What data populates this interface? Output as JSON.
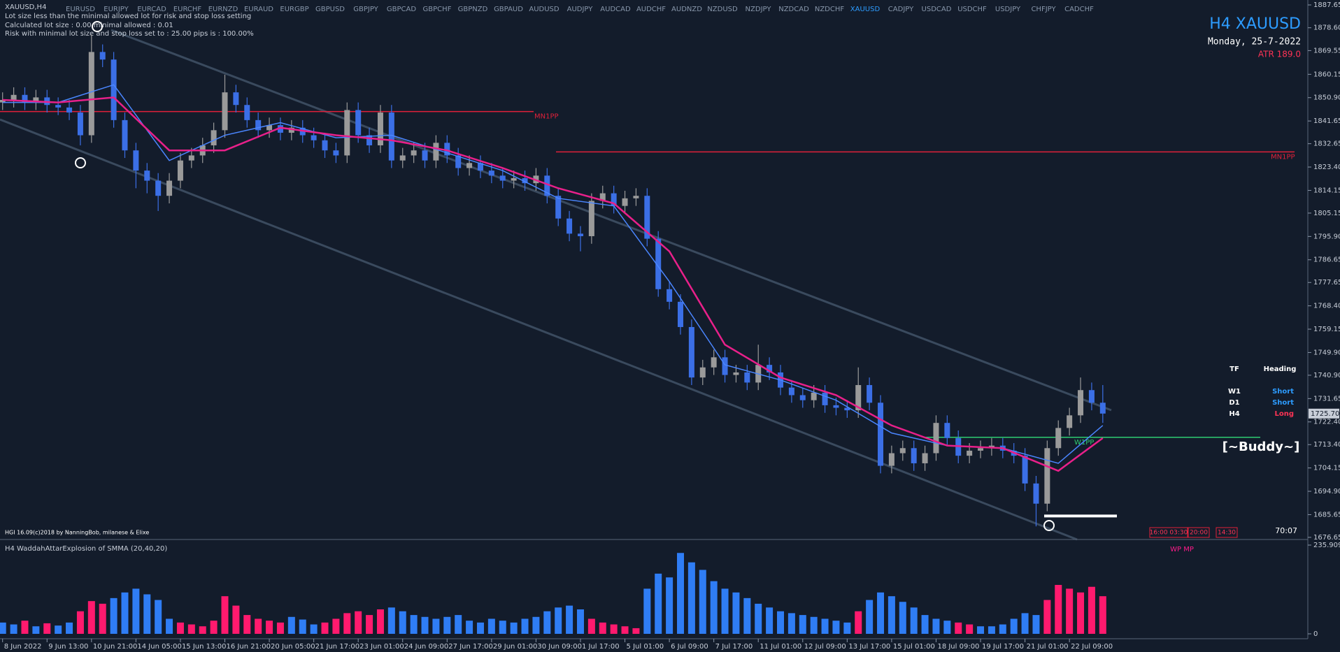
{
  "window": {
    "title": "XAUUSD,H4",
    "symbols": [
      "EURUSD",
      "EURJPY",
      "EURCAD",
      "EURCHF",
      "EURNZD",
      "EURAUD",
      "EURGBP",
      "GBPUSD",
      "GBPJPY",
      "GBPCAD",
      "GBPCHF",
      "GBPNZD",
      "GBPAUD",
      "AUDUSD",
      "AUDJPY",
      "AUDCAD",
      "AUDCHF",
      "AUDNZD",
      "NZDUSD",
      "NZDJPY",
      "NZDCAD",
      "NZDCHF",
      "XAUUSD",
      "CADJPY",
      "USDCAD",
      "USDCHF",
      "USDJPY",
      "CHFJPY",
      "CADCHF"
    ],
    "active_symbol": "XAUUSD"
  },
  "messages": [
    "Lot size less than the minimal allowed lot for risk and stop loss setting",
    "Calculated lot size : 0.00 minimal allowed : 0.01",
    "Risk with minimal lot size and stop loss set to : 25.00 pips is : 100.00%"
  ],
  "header": {
    "title": "H4 XAUUSD",
    "date": "Monday, 25-7-2022",
    "atr": "ATR 189.0"
  },
  "chart_data": {
    "type": "candlestick",
    "up_color": "#9a9a9a",
    "down_color": "#3b6fe6",
    "candles": [
      [
        1849,
        1853,
        1846,
        1850
      ],
      [
        1850,
        1855,
        1847,
        1852
      ],
      [
        1852,
        1855,
        1846,
        1849
      ],
      [
        1849,
        1854,
        1846,
        1851
      ],
      [
        1851,
        1854,
        1845,
        1848
      ],
      [
        1848,
        1851,
        1844,
        1847
      ],
      [
        1847,
        1850,
        1842,
        1845
      ],
      [
        1845,
        1848,
        1832,
        1836
      ],
      [
        1836,
        1876,
        1833,
        1869
      ],
      [
        1869,
        1872,
        1863,
        1866
      ],
      [
        1866,
        1869,
        1839,
        1842
      ],
      [
        1842,
        1845,
        1827,
        1830
      ],
      [
        1830,
        1833,
        1815,
        1822
      ],
      [
        1822,
        1825,
        1813,
        1818
      ],
      [
        1818,
        1821,
        1806,
        1812
      ],
      [
        1812,
        1821,
        1809,
        1818
      ],
      [
        1818,
        1829,
        1815,
        1826
      ],
      [
        1826,
        1831,
        1823,
        1828
      ],
      [
        1828,
        1835,
        1825,
        1832
      ],
      [
        1832,
        1841,
        1829,
        1838
      ],
      [
        1838,
        1860,
        1835,
        1853
      ],
      [
        1853,
        1856,
        1845,
        1848
      ],
      [
        1848,
        1851,
        1839,
        1842
      ],
      [
        1842,
        1845,
        1835,
        1838
      ],
      [
        1838,
        1843,
        1835,
        1840
      ],
      [
        1840,
        1843,
        1834,
        1837
      ],
      [
        1837,
        1842,
        1834,
        1839
      ],
      [
        1839,
        1842,
        1833,
        1836
      ],
      [
        1836,
        1839,
        1831,
        1834
      ],
      [
        1834,
        1837,
        1827,
        1830
      ],
      [
        1830,
        1833,
        1825,
        1828
      ],
      [
        1828,
        1849,
        1825,
        1846
      ],
      [
        1846,
        1849,
        1833,
        1836
      ],
      [
        1836,
        1839,
        1829,
        1832
      ],
      [
        1832,
        1848,
        1829,
        1845
      ],
      [
        1845,
        1848,
        1823,
        1826
      ],
      [
        1826,
        1831,
        1823,
        1828
      ],
      [
        1828,
        1833,
        1825,
        1830
      ],
      [
        1830,
        1833,
        1823,
        1826
      ],
      [
        1826,
        1836,
        1823,
        1833
      ],
      [
        1833,
        1836,
        1825,
        1828
      ],
      [
        1828,
        1831,
        1820,
        1823
      ],
      [
        1823,
        1828,
        1820,
        1825
      ],
      [
        1825,
        1828,
        1819,
        1822
      ],
      [
        1822,
        1825,
        1817,
        1820
      ],
      [
        1820,
        1823,
        1815,
        1818
      ],
      [
        1818,
        1822,
        1815,
        1819
      ],
      [
        1819,
        1822,
        1814,
        1817
      ],
      [
        1817,
        1823,
        1814,
        1820
      ],
      [
        1820,
        1823,
        1809,
        1812
      ],
      [
        1812,
        1815,
        1800,
        1803
      ],
      [
        1803,
        1806,
        1794,
        1797
      ],
      [
        1797,
        1800,
        1790,
        1796
      ],
      [
        1796,
        1813,
        1793,
        1810
      ],
      [
        1810,
        1816,
        1807,
        1813
      ],
      [
        1813,
        1816,
        1805,
        1808
      ],
      [
        1808,
        1814,
        1805,
        1811
      ],
      [
        1811,
        1815,
        1808,
        1812
      ],
      [
        1812,
        1815,
        1792,
        1795
      ],
      [
        1795,
        1798,
        1772,
        1775
      ],
      [
        1775,
        1778,
        1767,
        1770
      ],
      [
        1770,
        1773,
        1757,
        1760
      ],
      [
        1760,
        1763,
        1737,
        1740
      ],
      [
        1740,
        1747,
        1737,
        1744
      ],
      [
        1744,
        1751,
        1741,
        1748
      ],
      [
        1748,
        1751,
        1738,
        1741
      ],
      [
        1741,
        1745,
        1738,
        1742
      ],
      [
        1742,
        1745,
        1735,
        1738
      ],
      [
        1738,
        1753,
        1735,
        1745
      ],
      [
        1745,
        1748,
        1739,
        1742
      ],
      [
        1742,
        1745,
        1733,
        1736
      ],
      [
        1736,
        1739,
        1730,
        1733
      ],
      [
        1733,
        1736,
        1728,
        1731
      ],
      [
        1731,
        1737,
        1728,
        1734
      ],
      [
        1734,
        1737,
        1726,
        1729
      ],
      [
        1729,
        1732,
        1725,
        1728
      ],
      [
        1728,
        1731,
        1724,
        1727
      ],
      [
        1727,
        1744,
        1724,
        1737
      ],
      [
        1737,
        1740,
        1727,
        1730
      ],
      [
        1730,
        1733,
        1702,
        1705
      ],
      [
        1705,
        1713,
        1702,
        1710
      ],
      [
        1710,
        1715,
        1707,
        1712
      ],
      [
        1712,
        1715,
        1703,
        1706
      ],
      [
        1706,
        1713,
        1703,
        1710
      ],
      [
        1710,
        1725,
        1707,
        1722
      ],
      [
        1722,
        1725,
        1713,
        1716
      ],
      [
        1716,
        1719,
        1706,
        1709
      ],
      [
        1709,
        1714,
        1706,
        1711
      ],
      [
        1711,
        1715,
        1708,
        1712
      ],
      [
        1712,
        1716,
        1709,
        1713
      ],
      [
        1713,
        1716,
        1708,
        1711
      ],
      [
        1711,
        1714,
        1706,
        1709
      ],
      [
        1709,
        1712,
        1695,
        1698
      ],
      [
        1698,
        1701,
        1681,
        1690
      ],
      [
        1690,
        1715,
        1687,
        1712
      ],
      [
        1712,
        1723,
        1709,
        1720
      ],
      [
        1720,
        1728,
        1717,
        1725
      ],
      [
        1725,
        1740,
        1722,
        1735
      ],
      [
        1735,
        1738,
        1727,
        1730
      ],
      [
        1730,
        1737,
        1722,
        1725.7
      ]
    ],
    "time_labels": [
      "8 Jun 2022",
      "9 Jun 13:00",
      "10 Jun 21:00",
      "14 Jun 05:00",
      "15 Jun 13:00",
      "16 Jun 21:00",
      "20 Jun 05:00",
      "21 Jun 17:00",
      "23 Jun 01:00",
      "24 Jun 09:00",
      "27 Jun 17:00",
      "29 Jun 01:00",
      "30 Jun 09:00",
      "1 Jul 17:00",
      "5 Jul 01:00",
      "6 Jul 09:00",
      "7 Jul 17:00",
      "11 Jul 01:00",
      "12 Jul 09:00",
      "13 Jul 17:00",
      "15 Jul 01:00",
      "18 Jul 09:00",
      "19 Jul 17:00",
      "21 Jul 01:00",
      "22 Jul 09:00"
    ],
    "ylim": [
      1675.8,
      1889.6
    ],
    "yticks": [
      {
        "value": 1887.65,
        "label": "1887.65"
      },
      {
        "value": 1878.6,
        "label": "1878.60"
      },
      {
        "value": 1869.55,
        "label": "1869.55"
      },
      {
        "value": 1860.15,
        "label": "1860.15"
      },
      {
        "value": 1850.9,
        "label": "1850.90"
      },
      {
        "value": 1841.65,
        "label": "1841.65"
      },
      {
        "value": 1832.65,
        "label": "1832.65"
      },
      {
        "value": 1823.4,
        "label": "1823.40"
      },
      {
        "value": 1814.15,
        "label": "1814.15"
      },
      {
        "value": 1805.15,
        "label": "1805.15"
      },
      {
        "value": 1795.9,
        "label": "1795.90"
      },
      {
        "value": 1786.65,
        "label": "1786.65"
      },
      {
        "value": 1777.65,
        "label": "1777.65"
      },
      {
        "value": 1768.4,
        "label": "1768.40"
      },
      {
        "value": 1759.15,
        "label": "1759.15"
      },
      {
        "value": 1749.9,
        "label": "1749.90"
      },
      {
        "value": 1740.9,
        "label": "1740.90"
      },
      {
        "value": 1731.65,
        "label": "1731.65"
      },
      {
        "value": 1722.4,
        "label": "1722.40"
      },
      {
        "value": 1713.4,
        "label": "1713.40"
      },
      {
        "value": 1704.15,
        "label": "1704.15"
      },
      {
        "value": 1694.9,
        "label": "1694.90"
      },
      {
        "value": 1685.65,
        "label": "1685.65"
      },
      {
        "value": 1676.65,
        "label": "1676.65"
      }
    ],
    "ma_x": [
      0,
      5,
      10,
      15,
      20,
      25,
      30,
      35,
      40,
      45,
      50,
      55,
      60,
      65,
      70,
      75,
      80,
      85,
      90,
      95,
      99
    ],
    "ma_fast": {
      "color": "#4a86ff",
      "values": [
        1849,
        1849,
        1856,
        1826,
        1836,
        1841,
        1835,
        1836,
        1829,
        1822,
        1811,
        1808,
        1778,
        1745,
        1739,
        1731,
        1718,
        1713,
        1712,
        1706,
        1721
      ]
    },
    "ma_slow": {
      "color": "#e8208a",
      "values": [
        1850,
        1849,
        1851,
        1830,
        1830,
        1839,
        1836,
        1834,
        1830,
        1823,
        1815,
        1809,
        1790,
        1753,
        1740,
        1733,
        1721,
        1713,
        1712,
        1703,
        1716
      ]
    },
    "levels": [
      {
        "label": "MN1PP",
        "value": 1845.4,
        "color": "#e0203a"
      },
      {
        "label": "MN1PP",
        "value": 1829.4,
        "color": "#e0203a"
      },
      {
        "label": "W1PP",
        "value": 1716.3,
        "color": "#2ecc71"
      }
    ],
    "low_marker": 1685.1,
    "current_price": {
      "value": 1725.7,
      "label": "1725.70"
    }
  },
  "table": {
    "header": [
      "TF",
      "Heading"
    ],
    "rows": [
      [
        "W1",
        "Short"
      ],
      [
        "D1",
        "Short"
      ],
      [
        "H4",
        "Long"
      ]
    ]
  },
  "signature": "[~Buddy~]",
  "countdown": "70:07",
  "sessions": [
    "16:00 03:30",
    "20:00",
    "14:30"
  ],
  "copyright": "HGI 16.09(c)2018 by NanningBob, milanese & Elixe",
  "indicator": {
    "type": "bar",
    "title": "H4 WaddahAttarExplosion of SMMA (20,40,20)",
    "tag": "WP MP",
    "palette": [
      "#2f7df5",
      "#ff1a6e"
    ],
    "ylim": [
      0,
      235.9094
    ],
    "yticks": [
      0,
      235.9094
    ],
    "values": [
      30,
      25,
      35,
      20,
      28,
      22,
      30,
      60,
      87,
      80,
      95,
      110,
      120,
      105,
      90,
      40,
      30,
      25,
      20,
      35,
      100,
      75,
      50,
      40,
      35,
      30,
      45,
      38,
      25,
      30,
      40,
      55,
      60,
      50,
      65,
      70,
      60,
      50,
      45,
      40,
      45,
      50,
      35,
      30,
      40,
      35,
      30,
      40,
      45,
      60,
      70,
      75,
      65,
      40,
      30,
      25,
      20,
      15,
      120,
      160,
      150,
      215,
      190,
      170,
      140,
      120,
      110,
      95,
      80,
      70,
      60,
      55,
      50,
      45,
      40,
      35,
      30,
      60,
      90,
      110,
      100,
      85,
      70,
      50,
      40,
      35,
      30,
      25,
      20,
      20,
      25,
      40,
      55,
      50,
      90,
      130,
      120,
      110,
      125,
      100
    ],
    "color_index": [
      0,
      0,
      1,
      0,
      1,
      0,
      0,
      1,
      1,
      1,
      0,
      0,
      0,
      0,
      0,
      0,
      1,
      1,
      1,
      1,
      1,
      1,
      1,
      1,
      1,
      1,
      0,
      0,
      0,
      1,
      1,
      1,
      1,
      1,
      1,
      0,
      0,
      0,
      0,
      0,
      0,
      0,
      0,
      0,
      0,
      0,
      0,
      0,
      0,
      0,
      0,
      0,
      0,
      1,
      1,
      1,
      1,
      1,
      0,
      0,
      0,
      0,
      0,
      0,
      0,
      0,
      0,
      0,
      0,
      0,
      0,
      0,
      0,
      0,
      0,
      0,
      0,
      1,
      0,
      0,
      0,
      0,
      0,
      0,
      0,
      0,
      1,
      1,
      0,
      0,
      0,
      0,
      0,
      0,
      1,
      1,
      1,
      1,
      1,
      1
    ]
  }
}
